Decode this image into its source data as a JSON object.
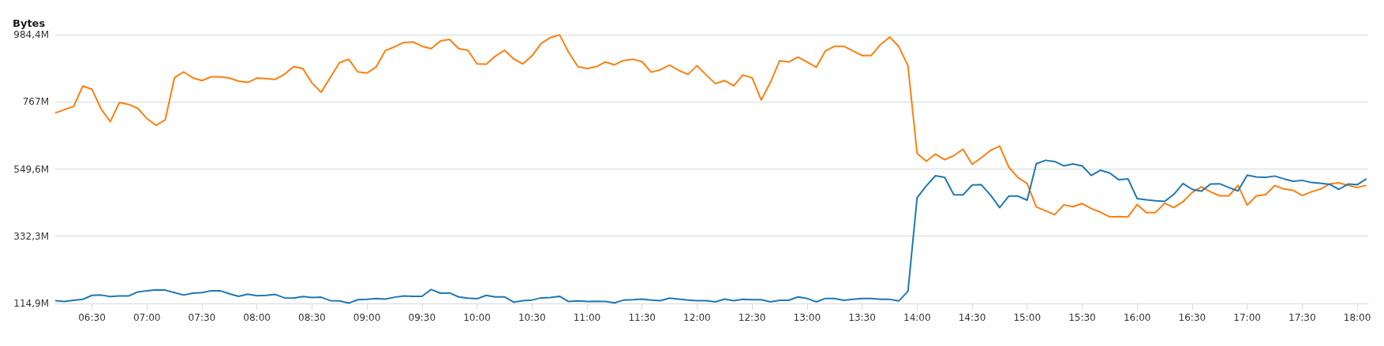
{
  "chart_data": {
    "type": "line",
    "ylabel": "Bytes",
    "x": [
      6.1667,
      6.25,
      6.3333,
      6.4167,
      6.5,
      6.5833,
      6.6667,
      6.75,
      6.8333,
      6.9167,
      7,
      7.0833,
      7.1667,
      7.25,
      7.3333,
      7.4167,
      7.5,
      7.5833,
      7.6667,
      7.75,
      7.8333,
      7.9167,
      8,
      8.0833,
      8.1667,
      8.25,
      8.3333,
      8.4167,
      8.5,
      8.5833,
      8.6667,
      8.75,
      8.8333,
      8.9167,
      9,
      9.0833,
      9.1667,
      9.25,
      9.3333,
      9.4167,
      9.5,
      9.5833,
      9.6667,
      9.75,
      9.8333,
      9.9167,
      10,
      10.0833,
      10.1667,
      10.25,
      10.3333,
      10.4167,
      10.5,
      10.5833,
      10.6667,
      10.75,
      10.8333,
      10.9167,
      11,
      11.0833,
      11.1667,
      11.25,
      11.3333,
      11.4167,
      11.5,
      11.5833,
      11.6667,
      11.75,
      11.8333,
      11.9167,
      12,
      12.0833,
      12.1667,
      12.25,
      12.3333,
      12.4167,
      12.5,
      12.5833,
      12.6667,
      12.75,
      12.8333,
      12.9167,
      13,
      13.0833,
      13.1667,
      13.25,
      13.3333,
      13.4167,
      13.5,
      13.5833,
      13.6667,
      13.75,
      13.8333,
      13.9167,
      14,
      14.0833,
      14.1667,
      14.25,
      14.3333,
      14.4167,
      14.5,
      14.5833,
      14.6667,
      14.75,
      14.8333,
      14.9167,
      15,
      15.0833,
      15.1667,
      15.25,
      15.3333,
      15.4167,
      15.5,
      15.5833,
      15.6667,
      15.75,
      15.8333,
      15.9167,
      16,
      16.0833,
      16.1667,
      16.25,
      16.3333,
      16.4167,
      16.5,
      16.5833,
      16.6667,
      16.75,
      16.8333,
      16.9167,
      17,
      17.0833,
      17.1667,
      17.25,
      17.3333,
      17.4167,
      17.5,
      17.5833,
      17.6667,
      17.75,
      17.8333,
      17.9167,
      18,
      18.0833
    ],
    "series": [
      {
        "color": "#ff7f0e",
        "values": [
          731,
          742,
          752,
          818,
          808,
          744,
          703,
          765,
          759,
          746,
          713,
          691,
          709,
          845,
          864,
          845,
          836,
          848,
          848,
          844,
          834,
          830,
          844,
          842,
          840,
          856,
          881,
          875,
          828,
          798,
          846,
          894,
          905,
          864,
          860,
          880,
          933,
          945,
          959,
          961,
          947,
          939,
          964,
          969,
          939,
          934,
          890,
          889,
          915,
          934,
          906,
          890,
          916,
          956,
          975,
          984,
          927,
          881,
          875,
          881,
          896,
          887,
          901,
          905,
          897,
          863,
          871,
          886,
          869,
          856,
          884,
          854,
          826,
          836,
          819,
          854,
          845,
          773,
          830,
          900,
          896,
          912,
          896,
          879,
          932,
          947,
          947,
          932,
          917,
          917,
          952,
          977,
          946,
          884,
          600,
          575,
          598,
          580,
          593,
          614,
          565,
          586,
          610,
          624,
          556,
          522,
          503,
          427,
          415,
          402,
          434,
          428,
          438,
          422,
          410,
          395,
          396,
          395,
          435,
          409,
          409,
          439,
          425,
          444,
          474,
          492,
          476,
          463,
          463,
          497,
          433,
          463,
          467,
          496,
          485,
          481,
          464,
          476,
          485,
          502,
          505,
          497,
          490,
          497
        ]
      },
      {
        "color": "#1f77b4",
        "values": [
          124,
          121,
          125,
          128,
          141,
          142,
          137,
          139,
          139,
          152,
          156,
          159,
          158,
          150,
          142,
          148,
          150,
          156,
          156,
          146,
          138,
          145,
          140,
          141,
          144,
          133,
          132,
          137,
          134,
          135,
          124,
          123,
          116,
          127,
          128,
          131,
          129,
          135,
          139,
          138,
          138,
          160,
          148,
          149,
          136,
          132,
          130,
          141,
          136,
          136,
          119,
          124,
          126,
          133,
          134,
          138,
          121,
          123,
          121,
          122,
          121,
          117,
          126,
          127,
          129,
          126,
          124,
          132,
          129,
          126,
          124,
          124,
          120,
          129,
          124,
          128,
          127,
          127,
          120,
          125,
          125,
          136,
          131,
          120,
          131,
          131,
          125,
          128,
          131,
          131,
          128,
          128,
          123,
          154,
          457,
          495,
          528,
          523,
          467,
          466,
          498,
          499,
          466,
          425,
          462,
          462,
          449,
          567,
          578,
          574,
          560,
          566,
          560,
          529,
          546,
          537,
          515,
          518,
          454,
          450,
          447,
          445,
          468,
          503,
          484,
          478,
          501,
          502,
          490,
          479,
          530,
          524,
          523,
          527,
          518,
          510,
          513,
          506,
          504,
          500,
          484,
          501,
          499,
          518
        ]
      }
    ],
    "xlim": [
      6.1667,
      18.1
    ],
    "xticks": [
      {
        "value": 6.5,
        "label": "06:30"
      },
      {
        "value": 7,
        "label": "07:00"
      },
      {
        "value": 7.5,
        "label": "07:30"
      },
      {
        "value": 8,
        "label": "08:00"
      },
      {
        "value": 8.5,
        "label": "08:30"
      },
      {
        "value": 9,
        "label": "09:00"
      },
      {
        "value": 9.5,
        "label": "09:30"
      },
      {
        "value": 10,
        "label": "10:00"
      },
      {
        "value": 10.5,
        "label": "10:30"
      },
      {
        "value": 11,
        "label": "11:00"
      },
      {
        "value": 11.5,
        "label": "11:30"
      },
      {
        "value": 12,
        "label": "12:00"
      },
      {
        "value": 12.5,
        "label": "12:30"
      },
      {
        "value": 13,
        "label": "13:00"
      },
      {
        "value": 13.5,
        "label": "13:30"
      },
      {
        "value": 14,
        "label": "14:00"
      },
      {
        "value": 14.5,
        "label": "14:30"
      },
      {
        "value": 15,
        "label": "15:00"
      },
      {
        "value": 15.5,
        "label": "15:30"
      },
      {
        "value": 16,
        "label": "16:00"
      },
      {
        "value": 16.5,
        "label": "16:30"
      },
      {
        "value": 17,
        "label": "17:00"
      },
      {
        "value": 17.5,
        "label": "17:30"
      },
      {
        "value": 18,
        "label": "18:00"
      }
    ],
    "ylim": [
      114.9,
      984.4
    ],
    "yticks": [
      {
        "value": 114.9,
        "label": "114,9M"
      },
      {
        "value": 332.3,
        "label": "332,3M"
      },
      {
        "value": 549.6,
        "label": "549,6M"
      },
      {
        "value": 767,
        "label": "767M"
      },
      {
        "value": 984.4,
        "label": "984,4M"
      }
    ],
    "grid": "y",
    "marker": "none",
    "line_style": "solid"
  }
}
